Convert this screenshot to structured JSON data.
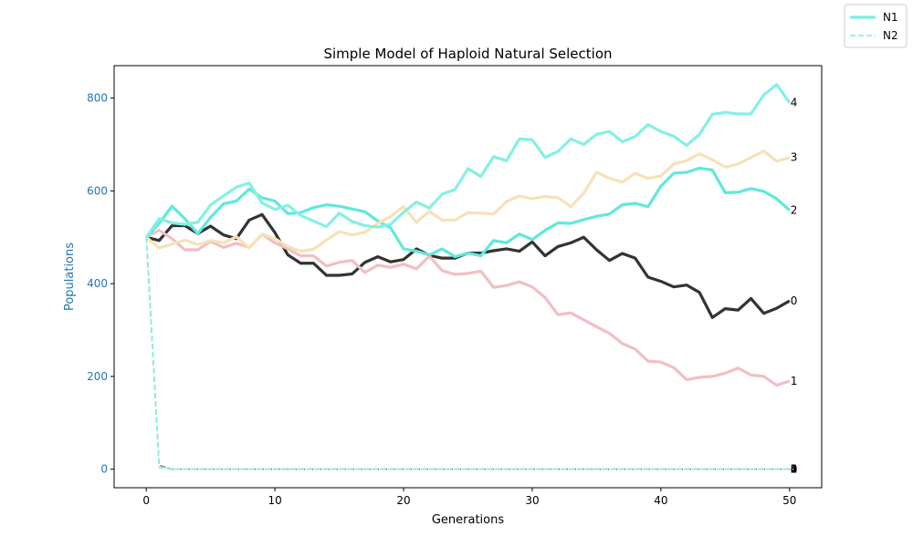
{
  "chart_data": {
    "type": "line",
    "title": "Simple Model of Haploid Natural Selection",
    "xlabel": "Generations",
    "ylabel": "Populations",
    "ylabel_color": "#1f77b4",
    "xlim": [
      -2.5,
      52.5
    ],
    "ylim": [
      -40,
      870
    ],
    "xticks": [
      0,
      10,
      20,
      30,
      40,
      50
    ],
    "yticks": [
      0,
      200,
      400,
      600,
      800
    ],
    "grid": false,
    "legend": {
      "position": "outside-top-right",
      "entries": [
        {
          "label": "N1",
          "style": "solid",
          "color": "#7fede0"
        },
        {
          "label": "N2",
          "style": "dashed",
          "color": "#7fede0"
        }
      ]
    },
    "x": [
      0,
      1,
      2,
      3,
      4,
      5,
      6,
      7,
      8,
      9,
      10,
      11,
      12,
      13,
      14,
      15,
      16,
      17,
      18,
      19,
      20,
      21,
      22,
      23,
      24,
      25,
      26,
      27,
      28,
      29,
      30,
      31,
      32,
      33,
      34,
      35,
      36,
      37,
      38,
      39,
      40,
      41,
      42,
      43,
      44,
      45,
      46,
      47,
      48,
      49,
      50
    ],
    "series": [
      {
        "end_label": "0",
        "group": "N1",
        "color": "#333333",
        "alpha": 1.0,
        "values": [
          500,
          493,
          525,
          525,
          508,
          524,
          505,
          497,
          537,
          549,
          510,
          462,
          444,
          444,
          418,
          418,
          421,
          446,
          458,
          447,
          452,
          475,
          461,
          455,
          455,
          466,
          466,
          471,
          475,
          470,
          490,
          460,
          480,
          488,
          500,
          473,
          450,
          465,
          455,
          414,
          405,
          393,
          397,
          381,
          327,
          346,
          343,
          368,
          336,
          347,
          363
        ]
      },
      {
        "end_label": "1",
        "group": "N1",
        "color": "#f1bfc4",
        "alpha": 1.0,
        "values": [
          500,
          515,
          497,
          473,
          473,
          491,
          478,
          487,
          478,
          506,
          488,
          475,
          460,
          460,
          438,
          446,
          450,
          424,
          440,
          435,
          442,
          432,
          459,
          428,
          420,
          422,
          427,
          392,
          396,
          404,
          393,
          370,
          333,
          337,
          322,
          307,
          293,
          271,
          259,
          233,
          231,
          219,
          193,
          198,
          200,
          207,
          218,
          203,
          200,
          181,
          190
        ]
      },
      {
        "end_label": "2",
        "group": "N1",
        "color": "#5fe9dc",
        "alpha": 1.0,
        "values": [
          500,
          530,
          567,
          540,
          508,
          543,
          572,
          578,
          604,
          585,
          578,
          551,
          553,
          564,
          570,
          567,
          561,
          555,
          535,
          520,
          475,
          470,
          462,
          475,
          458,
          466,
          460,
          493,
          488,
          507,
          495,
          515,
          531,
          530,
          538,
          545,
          550,
          570,
          573,
          566,
          610,
          638,
          640,
          649,
          645,
          596,
          597,
          605,
          599,
          583,
          558
        ]
      },
      {
        "end_label": "3",
        "group": "N1",
        "color": "#f5e2b8",
        "alpha": 1.0,
        "values": [
          500,
          477,
          485,
          494,
          484,
          493,
          488,
          501,
          477,
          507,
          497,
          480,
          470,
          474,
          494,
          512,
          505,
          511,
          530,
          545,
          566,
          532,
          556,
          537,
          537,
          553,
          552,
          550,
          577,
          589,
          583,
          588,
          585,
          566,
          595,
          640,
          627,
          619,
          638,
          627,
          632,
          658,
          665,
          680,
          667,
          651,
          658,
          672,
          686,
          664,
          672
        ]
      },
      {
        "end_label": "4",
        "group": "N1",
        "color": "#85f0e4",
        "alpha": 1.0,
        "values": [
          500,
          540,
          531,
          528,
          532,
          570,
          589,
          608,
          617,
          574,
          560,
          569,
          547,
          535,
          523,
          552,
          534,
          525,
          522,
          528,
          554,
          576,
          563,
          593,
          603,
          648,
          631,
          674,
          665,
          712,
          710,
          672,
          685,
          712,
          700,
          722,
          728,
          706,
          717,
          743,
          728,
          718,
          698,
          722,
          765,
          769,
          766,
          766,
          807,
          829,
          790
        ]
      },
      {
        "end_label": "0",
        "group": "N2",
        "color": "#555555",
        "alpha": 1.0,
        "values": [
          500,
          8,
          0,
          0,
          0,
          0,
          0,
          0,
          0,
          0,
          0,
          0,
          0,
          0,
          0,
          0,
          0,
          0,
          0,
          0,
          0,
          0,
          0,
          0,
          0,
          0,
          0,
          0,
          0,
          0,
          0,
          0,
          0,
          0,
          0,
          0,
          0,
          0,
          0,
          0,
          0,
          0,
          0,
          0,
          0,
          0,
          0,
          0,
          0,
          0,
          0
        ]
      },
      {
        "end_label": "1",
        "group": "N2",
        "color": "#f1bfc4",
        "alpha": 1.0,
        "values": [
          500,
          6,
          0,
          0,
          0,
          0,
          0,
          0,
          0,
          0,
          0,
          0,
          0,
          0,
          0,
          0,
          0,
          0,
          0,
          0,
          0,
          0,
          0,
          0,
          0,
          0,
          0,
          0,
          0,
          0,
          0,
          0,
          0,
          0,
          0,
          0,
          0,
          0,
          0,
          0,
          0,
          0,
          0,
          0,
          0,
          0,
          0,
          0,
          0,
          0,
          0
        ]
      },
      {
        "end_label": "2",
        "group": "N2",
        "color": "#5fe9dc",
        "alpha": 1.0,
        "values": [
          500,
          5,
          0,
          0,
          0,
          0,
          0,
          0,
          0,
          0,
          0,
          0,
          0,
          0,
          0,
          0,
          0,
          0,
          0,
          0,
          0,
          0,
          0,
          0,
          0,
          0,
          0,
          0,
          0,
          0,
          0,
          0,
          0,
          0,
          0,
          0,
          0,
          0,
          0,
          0,
          0,
          0,
          0,
          0,
          0,
          0,
          0,
          0,
          0,
          0,
          0
        ]
      },
      {
        "end_label": "3",
        "group": "N2",
        "color": "#f5e2b8",
        "alpha": 1.0,
        "values": [
          500,
          4,
          0,
          0,
          0,
          0,
          0,
          0,
          0,
          0,
          0,
          0,
          0,
          0,
          0,
          0,
          0,
          0,
          0,
          0,
          0,
          0,
          0,
          0,
          0,
          0,
          0,
          0,
          0,
          0,
          0,
          0,
          0,
          0,
          0,
          0,
          0,
          0,
          0,
          0,
          0,
          0,
          0,
          0,
          0,
          0,
          0,
          0,
          0,
          0,
          0
        ]
      },
      {
        "end_label": "4",
        "group": "N2",
        "color": "#85f0e4",
        "alpha": 1.0,
        "values": [
          500,
          3,
          0,
          0,
          0,
          0,
          0,
          0,
          0,
          0,
          0,
          0,
          0,
          0,
          0,
          0,
          0,
          0,
          0,
          0,
          0,
          0,
          0,
          0,
          0,
          0,
          0,
          0,
          0,
          0,
          0,
          0,
          0,
          0,
          0,
          0,
          0,
          0,
          0,
          0,
          0,
          0,
          0,
          0,
          0,
          0,
          0,
          0,
          0,
          0,
          0
        ]
      }
    ]
  }
}
